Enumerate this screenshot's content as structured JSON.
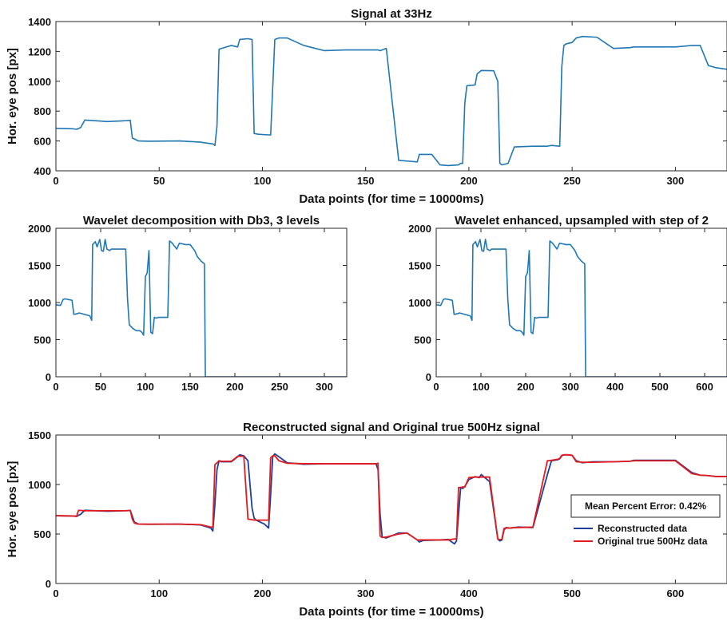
{
  "colors": {
    "blue": "#1f77b4",
    "red": "#e41a1c",
    "navy": "#1f3f9c"
  },
  "chart_data": [
    {
      "type": "line",
      "title": "Signal at 33Hz",
      "xlabel": "Data points (for time = 10000ms)",
      "ylabel": "Hor. eye pos [px]",
      "xlim": [
        0,
        325
      ],
      "ylim": [
        400,
        1400
      ],
      "xticks": [
        0,
        50,
        100,
        150,
        200,
        250,
        300
      ],
      "yticks": [
        400,
        600,
        800,
        1000,
        1200,
        1400
      ],
      "series": [
        {
          "color": "#1f77b4",
          "x": [
            0,
            8,
            10,
            12,
            14,
            25,
            34,
            36,
            37,
            40,
            45,
            60,
            70,
            76,
            77,
            78,
            79,
            85,
            88,
            89,
            93,
            95,
            96,
            98,
            104,
            106,
            108,
            112,
            120,
            130,
            140,
            156,
            157,
            160,
            166,
            175,
            176,
            182,
            186,
            190,
            195,
            196,
            197,
            198,
            199,
            203,
            204,
            206,
            212,
            214,
            215,
            216,
            219,
            222,
            231,
            238,
            240,
            244,
            245,
            246,
            247,
            250,
            252,
            255,
            262,
            270,
            278,
            280,
            300,
            308,
            312,
            316,
            320,
            325
          ],
          "y": [
            685,
            682,
            678,
            690,
            740,
            730,
            736,
            738,
            620,
            600,
            598,
            600,
            592,
            580,
            570,
            700,
            1215,
            1240,
            1230,
            1280,
            1285,
            1280,
            650,
            645,
            640,
            1280,
            1290,
            1290,
            1240,
            1205,
            1210,
            1210,
            1205,
            1220,
            470,
            460,
            510,
            510,
            440,
            435,
            440,
            450,
            450,
            850,
            970,
            975,
            1050,
            1072,
            1070,
            1000,
            450,
            440,
            450,
            560,
            565,
            565,
            570,
            565,
            1100,
            1240,
            1250,
            1260,
            1290,
            1300,
            1295,
            1220,
            1225,
            1230,
            1230,
            1240,
            1240,
            1105,
            1090,
            1080
          ]
        }
      ]
    },
    {
      "type": "line",
      "title": "Wavelet decomposition with Db3, 3 levels",
      "xlabel": "",
      "ylabel": "",
      "xlim": [
        0,
        325
      ],
      "ylim": [
        0,
        2000
      ],
      "xticks": [
        0,
        50,
        100,
        150,
        200,
        250,
        300
      ],
      "yticks": [
        0,
        500,
        1000,
        1500,
        2000
      ],
      "series": [
        {
          "color": "#1f77b4",
          "x": [
            0,
            5,
            8,
            10,
            18,
            20,
            24,
            26,
            38,
            40,
            41,
            44,
            46,
            49,
            51,
            53,
            55,
            57,
            60,
            62,
            68,
            78,
            80,
            82,
            86,
            90,
            94,
            96,
            98,
            100,
            102,
            104,
            106,
            108,
            110,
            112,
            115,
            125,
            127,
            130,
            135,
            138,
            145,
            150,
            155,
            158,
            162,
            164,
            166,
            167,
            168,
            200,
            325
          ],
          "y": [
            970,
            960,
            1040,
            1050,
            1030,
            840,
            850,
            860,
            820,
            760,
            1780,
            1820,
            1750,
            1850,
            1700,
            1690,
            1850,
            1720,
            1700,
            1720,
            1720,
            1720,
            1050,
            700,
            650,
            620,
            620,
            600,
            560,
            1350,
            1400,
            1700,
            600,
            580,
            800,
            790,
            800,
            800,
            1830,
            1800,
            1720,
            1800,
            1780,
            1780,
            1700,
            1620,
            1560,
            1540,
            1520,
            0,
            0,
            0,
            0
          ]
        }
      ]
    },
    {
      "type": "line",
      "title": "Wavelet enhanced, upsampled with step of 2",
      "xlabel": "",
      "ylabel": "",
      "xlim": [
        0,
        650
      ],
      "ylim": [
        0,
        2000
      ],
      "xticks": [
        0,
        100,
        200,
        300,
        400,
        500,
        600
      ],
      "yticks": [
        0,
        500,
        1000,
        1500,
        2000
      ],
      "series": [
        {
          "color": "#1f77b4",
          "x": [
            0,
            10,
            16,
            20,
            36,
            40,
            48,
            52,
            76,
            80,
            82,
            88,
            92,
            98,
            102,
            106,
            110,
            114,
            120,
            124,
            136,
            156,
            160,
            164,
            172,
            180,
            188,
            192,
            196,
            200,
            204,
            208,
            212,
            216,
            220,
            224,
            230,
            250,
            254,
            260,
            270,
            276,
            290,
            300,
            310,
            316,
            324,
            328,
            332,
            334,
            336,
            400,
            650
          ],
          "y": [
            970,
            960,
            1040,
            1050,
            1030,
            840,
            850,
            860,
            820,
            760,
            1780,
            1820,
            1750,
            1850,
            1700,
            1690,
            1850,
            1720,
            1700,
            1720,
            1720,
            1720,
            1050,
            700,
            650,
            620,
            620,
            600,
            560,
            1350,
            1400,
            1700,
            600,
            580,
            800,
            790,
            800,
            800,
            1830,
            1800,
            1720,
            1800,
            1780,
            1780,
            1700,
            1620,
            1560,
            1540,
            1520,
            0,
            0,
            0,
            0
          ]
        }
      ]
    },
    {
      "type": "line",
      "title": "Reconstructed signal and Original true 500Hz signal",
      "xlabel": "Data points (for time = 10000ms)",
      "ylabel": "Hor. eye pos [px]",
      "xlim": [
        0,
        650
      ],
      "ylim": [
        0,
        1500
      ],
      "xticks": [
        0,
        100,
        200,
        300,
        400,
        500,
        600
      ],
      "yticks": [
        0,
        500,
        1000,
        1500
      ],
      "annotation": "Mean Percent Error: 0.42%",
      "legend": {
        "position": "lower-right"
      },
      "series": [
        {
          "name": "Reconstructed data",
          "color": "#1f3f9c",
          "x": [
            0,
            16,
            20,
            24,
            28,
            50,
            68,
            72,
            74,
            76,
            80,
            90,
            120,
            140,
            150,
            152,
            154,
            156,
            158,
            160,
            170,
            176,
            178,
            182,
            186,
            190,
            192,
            194,
            196,
            202,
            206,
            208,
            210,
            212,
            216,
            224,
            240,
            260,
            280,
            310,
            312,
            314,
            316,
            320,
            332,
            340,
            350,
            352,
            356,
            372,
            380,
            386,
            388,
            390,
            392,
            394,
            396,
            400,
            406,
            410,
            412,
            420,
            428,
            430,
            432,
            434,
            436,
            440,
            444,
            448,
            462,
            476,
            480,
            486,
            488,
            490,
            492,
            494,
            496,
            500,
            504,
            510,
            520,
            540,
            556,
            560,
            600,
            616,
            624,
            632,
            640,
            650
          ],
          "y": [
            685,
            682,
            678,
            700,
            740,
            730,
            736,
            738,
            680,
            620,
            600,
            598,
            600,
            592,
            560,
            530,
            800,
            1150,
            1240,
            1230,
            1230,
            1280,
            1300,
            1290,
            1240,
            760,
            660,
            640,
            630,
            600,
            560,
            900,
            1280,
            1310,
            1280,
            1220,
            1205,
            1210,
            1210,
            1210,
            1150,
            700,
            470,
            460,
            510,
            510,
            440,
            420,
            435,
            440,
            445,
            400,
            430,
            700,
            970,
            960,
            980,
            1050,
            1080,
            1070,
            1100,
            1030,
            450,
            430,
            440,
            540,
            565,
            560,
            565,
            570,
            565,
            1100,
            1240,
            1250,
            1260,
            1290,
            1300,
            1300,
            1300,
            1295,
            1240,
            1220,
            1230,
            1230,
            1235,
            1245,
            1245,
            1120,
            1095,
            1090,
            1080,
            1080
          ]
        },
        {
          "name": "Original true 500Hz data",
          "color": "#e41a1c",
          "x": [
            0,
            16,
            20,
            22,
            28,
            50,
            68,
            72,
            74,
            76,
            80,
            90,
            120,
            140,
            150,
            152,
            154,
            156,
            158,
            160,
            170,
            176,
            178,
            182,
            186,
            190,
            192,
            194,
            196,
            202,
            206,
            208,
            210,
            212,
            216,
            224,
            240,
            260,
            280,
            310,
            312,
            314,
            316,
            320,
            332,
            340,
            350,
            352,
            356,
            372,
            380,
            386,
            388,
            390,
            392,
            394,
            396,
            400,
            406,
            410,
            412,
            420,
            428,
            430,
            432,
            434,
            436,
            440,
            444,
            448,
            462,
            476,
            480,
            486,
            488,
            490,
            492,
            494,
            496,
            500,
            504,
            510,
            520,
            540,
            556,
            560,
            600,
            616,
            624,
            632,
            640,
            650
          ],
          "y": [
            685,
            682,
            680,
            740,
            735,
            735,
            735,
            738,
            650,
            610,
            600,
            600,
            600,
            595,
            570,
            570,
            1200,
            1220,
            1240,
            1235,
            1235,
            1285,
            1285,
            1285,
            650,
            645,
            640,
            640,
            640,
            640,
            640,
            1270,
            1290,
            1290,
            1240,
            1215,
            1210,
            1210,
            1210,
            1210,
            1215,
            480,
            465,
            470,
            500,
            510,
            440,
            440,
            440,
            440,
            440,
            450,
            450,
            970,
            970,
            975,
            975,
            1070,
            1075,
            1075,
            1075,
            1075,
            450,
            445,
            450,
            555,
            560,
            560,
            565,
            565,
            570,
            1240,
            1245,
            1255,
            1265,
            1295,
            1300,
            1300,
            1300,
            1295,
            1230,
            1225,
            1225,
            1230,
            1235,
            1240,
            1240,
            1110,
            1095,
            1090,
            1080,
            1080
          ]
        }
      ]
    }
  ]
}
